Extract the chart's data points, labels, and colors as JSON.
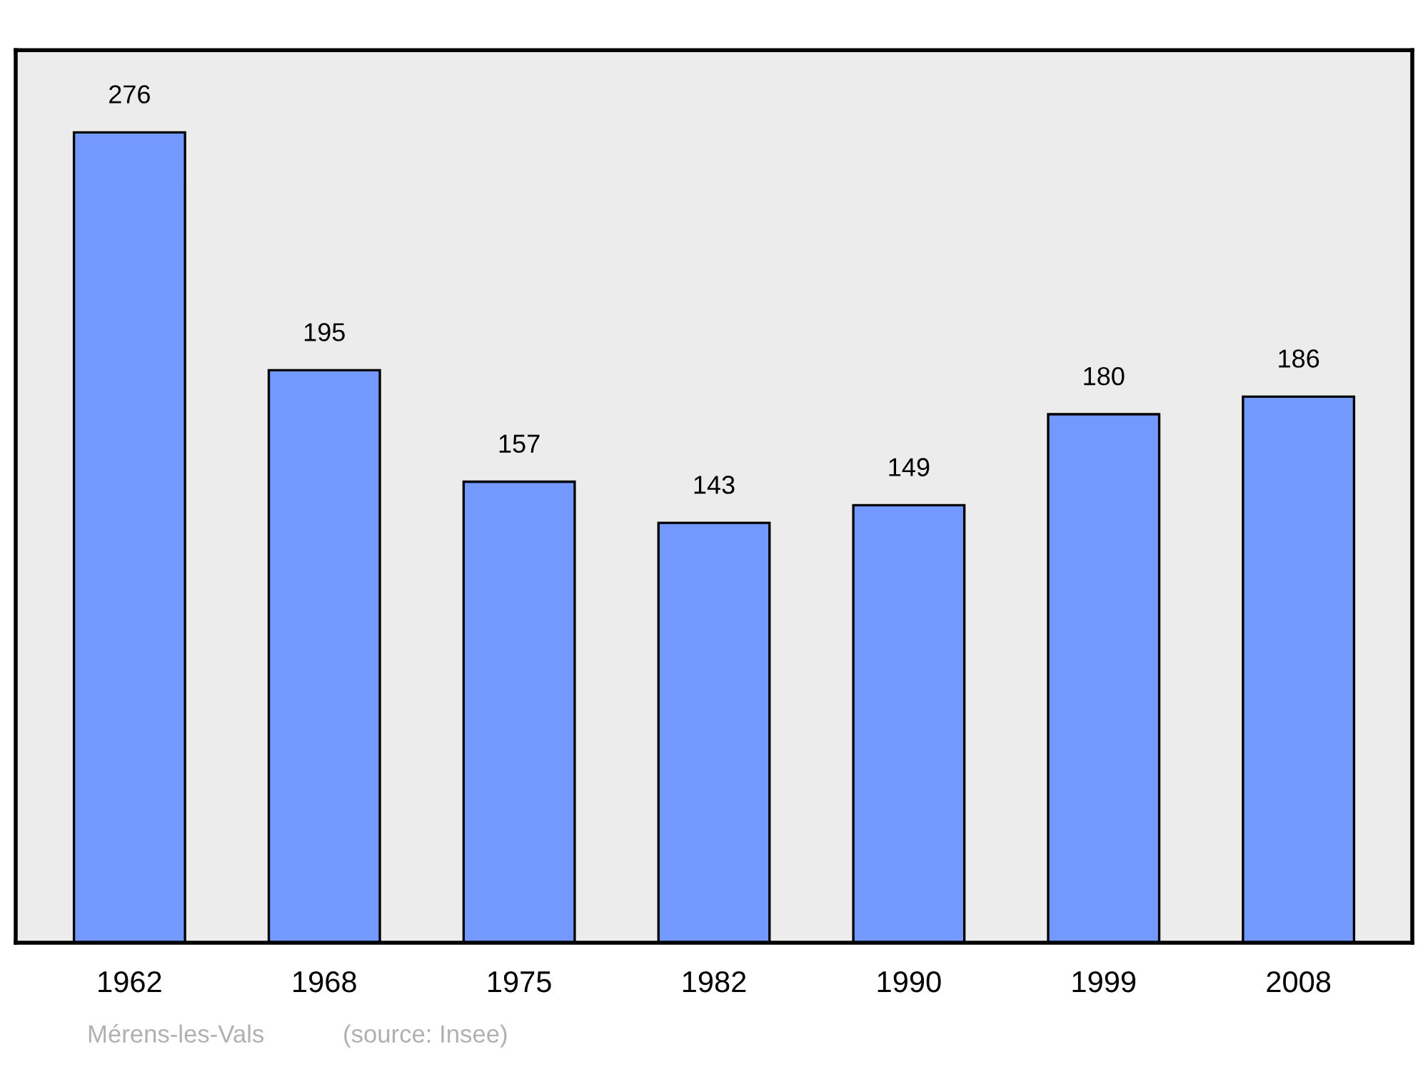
{
  "chart_data": {
    "type": "bar",
    "categories": [
      "1962",
      "1968",
      "1975",
      "1982",
      "1990",
      "1999",
      "2008"
    ],
    "values": [
      276,
      195,
      157,
      143,
      149,
      180,
      186
    ],
    "color": "#7399ff",
    "ylim": [
      0,
      304
    ],
    "tick_labels": "x",
    "data_labels": true,
    "grid": false,
    "legend": false,
    "annotations": [
      "Mérens-les-Vals",
      "(source: Insee)"
    ]
  }
}
